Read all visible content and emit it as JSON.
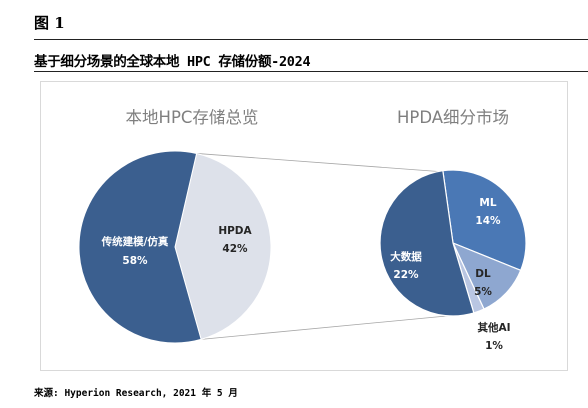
{
  "figure_label": "图 1",
  "title": "基于细分场景的全球本地 HPC 存储份额-2024",
  "source": "来源: Hyperion Research, 2021 年 5 月",
  "colors": {
    "dark_blue": "#3b5f8f",
    "light_gray": "#dde1ea",
    "mid_blue": "#4a78b5",
    "light_blue": "#8ea7d0",
    "pale_blue": "#b9c6e2"
  },
  "chart_data": [
    {
      "type": "pie",
      "title": "本地HPC存储总览",
      "slices": [
        {
          "label": "传统建模/仿真",
          "value": 58,
          "display": "58%"
        },
        {
          "label": "HPDA",
          "value": 42,
          "display": "42%"
        }
      ]
    },
    {
      "type": "pie",
      "title": "HPDA细分市场",
      "slices": [
        {
          "label": "ML",
          "value": 14,
          "display": "14%"
        },
        {
          "label": "DL",
          "value": 5,
          "display": "5%"
        },
        {
          "label": "其他AI",
          "value": 1,
          "display": "1%"
        },
        {
          "label": "大数据",
          "value": 22,
          "display": "22%"
        }
      ]
    }
  ]
}
